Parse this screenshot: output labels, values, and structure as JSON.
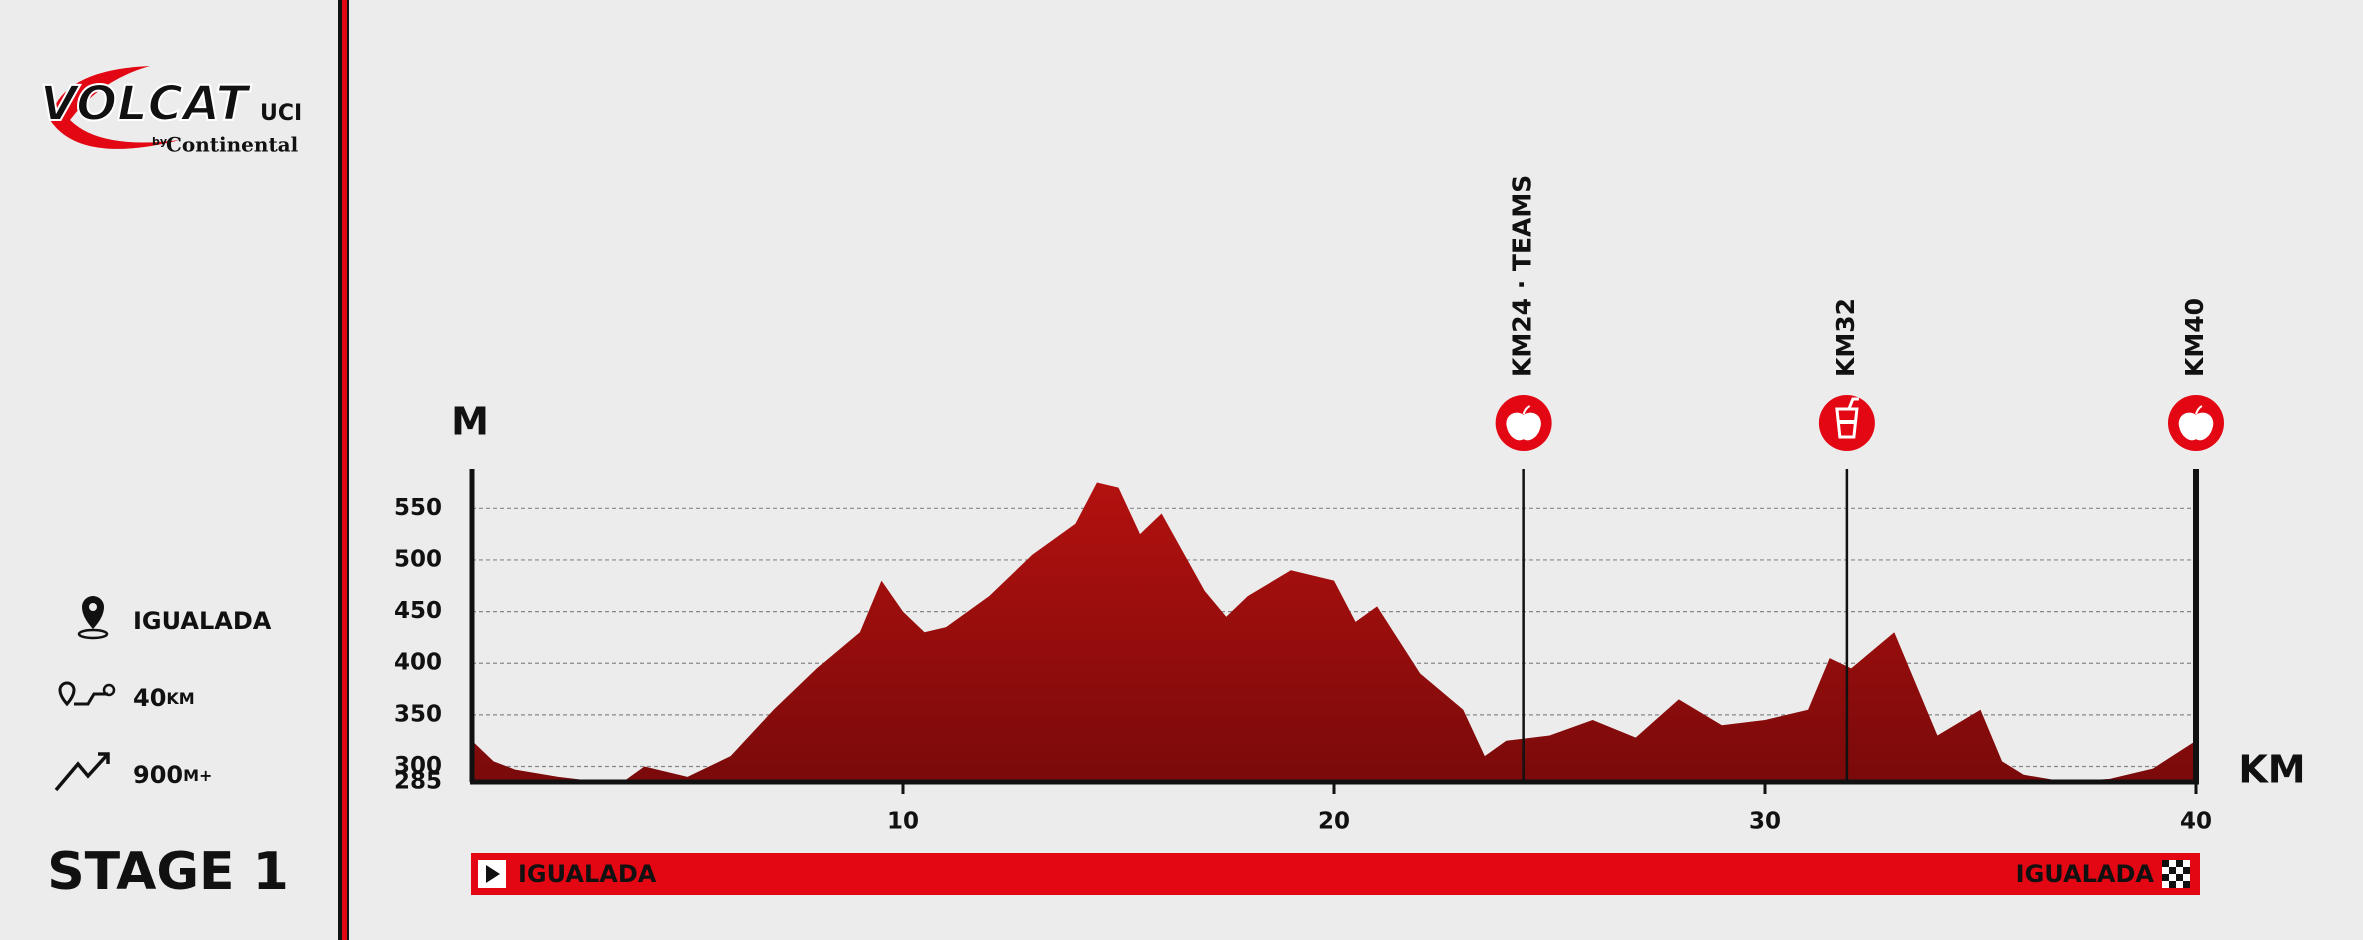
{
  "logo": {
    "name": "VOLCAT",
    "badge": "UCI",
    "by": "by",
    "sponsor": "Continental"
  },
  "info": {
    "location": "IGUALADA",
    "distance": "40",
    "distance_unit": "KM",
    "elevation": "900",
    "elevation_unit": "M+",
    "stage": "STAGE 1"
  },
  "route": {
    "start": "IGUALADA",
    "finish": "IGUALADA"
  },
  "chart_data": {
    "type": "area",
    "y_label": "M",
    "x_label": "KM",
    "color": "#b3110f",
    "grid": true,
    "x": [
      0,
      0.5,
      1,
      2,
      3,
      3.5,
      4,
      5,
      6,
      7,
      8,
      9,
      9.5,
      10,
      10.5,
      11,
      12,
      13,
      14,
      14.5,
      15,
      15.5,
      16,
      17,
      17.5,
      18,
      19,
      20,
      20.5,
      21,
      22,
      23,
      23.5,
      24,
      25,
      26,
      27,
      28,
      29,
      30,
      31,
      31.5,
      32,
      33,
      34,
      35,
      35.5,
      36,
      37,
      38,
      39,
      40
    ],
    "values": [
      325,
      305,
      297,
      290,
      285,
      285,
      300,
      290,
      310,
      355,
      395,
      430,
      480,
      450,
      430,
      435,
      465,
      505,
      535,
      575,
      570,
      525,
      545,
      470,
      445,
      465,
      490,
      480,
      440,
      455,
      390,
      355,
      310,
      325,
      330,
      345,
      328,
      365,
      340,
      345,
      355,
      405,
      395,
      430,
      330,
      355,
      305,
      292,
      285,
      288,
      298,
      325
    ],
    "xlim": [
      0,
      40
    ],
    "ylim": [
      285,
      590
    ],
    "xticks": [
      10,
      20,
      30,
      40
    ],
    "yticks": [
      285,
      300,
      350,
      400,
      450,
      500,
      550
    ],
    "markers": [
      {
        "x": 24.4,
        "label": "KM24 · TEAMS",
        "icon": "apple"
      },
      {
        "x": 31.9,
        "label": "KM32",
        "icon": "drink"
      },
      {
        "x": 40,
        "label": "KM40",
        "icon": "apple"
      }
    ]
  }
}
